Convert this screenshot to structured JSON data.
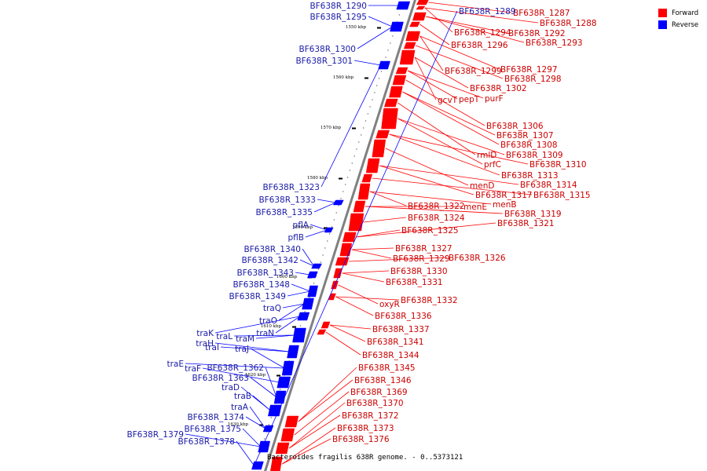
{
  "legend": {
    "forward_label": "Forward",
    "reverse_label": "Reverse"
  },
  "caption": "Bacteroides fragilis 638R genome. - 0..5373121",
  "colors": {
    "forward": "#ff0000",
    "reverse": "#0000ff",
    "backbone": "#808080",
    "forward_text": "#cc0000",
    "reverse_text": "#1a1aa8"
  },
  "ticks": [
    "1550 kbp",
    "1560 kbp",
    "1570 kbp",
    "1580 kbp",
    "1590 kbp",
    "1600 kbp",
    "1610 kbp",
    "1620 kbp",
    "1630 kbp"
  ],
  "reverse_genes": [
    "BF638R_1290",
    "BF638R_1295",
    "BF638R_1300",
    "BF638R_1301",
    "BF638R_1323",
    "BF638R_1333",
    "BF638R_1335",
    "pflA",
    "pflB",
    "BF638R_1340",
    "BF638R_1342",
    "BF638R_1343",
    "BF638R_1348",
    "BF638R_1349",
    "traQ",
    "traO",
    "traN",
    "traK",
    "traL",
    "traM",
    "traH",
    "traI",
    "traJ",
    "traE",
    "traF",
    "BF638R_1362",
    "BF638R_1363",
    "traD",
    "traB",
    "traA",
    "BF638R_1374",
    "BF638R_1375",
    "BF638R_1379",
    "BF638R_1378",
    "BF638R_1289"
  ],
  "forward_genes": [
    "BF638R_1287",
    "BF638R_1288",
    "BF638R_1294",
    "BF638R_1292",
    "BF638R_1293",
    "BF638R_1296",
    "BF638R_1299",
    "BF638R_1297",
    "BF638R_1298",
    "BF638R_1302",
    "gcvT",
    "pepT",
    "purF",
    "BF638R_1306",
    "BF638R_1307",
    "BF638R_1308",
    "rmlD",
    "BF638R_1309",
    "prfC",
    "BF638R_1310",
    "BF638R_1313",
    "menD",
    "BF638R_1314",
    "BF638R_1317",
    "BF638R_1315",
    "menB",
    "BF638R_1322",
    "menE",
    "BF638R_1319",
    "BF638R_1324",
    "BF638R_1321",
    "BF638R_1325",
    "BF638R_1327",
    "BF638R_1329",
    "BF638R_1326",
    "BF638R_1330",
    "BF638R_1331",
    "oxyR",
    "BF638R_1332",
    "BF638R_1336",
    "BF638R_1337",
    "BF638R_1341",
    "BF638R_1344",
    "BF638R_1345",
    "BF638R_1346",
    "BF638R_1369",
    "BF638R_1370",
    "BF638R_1372",
    "BF638R_1373",
    "BF638R_1376"
  ]
}
